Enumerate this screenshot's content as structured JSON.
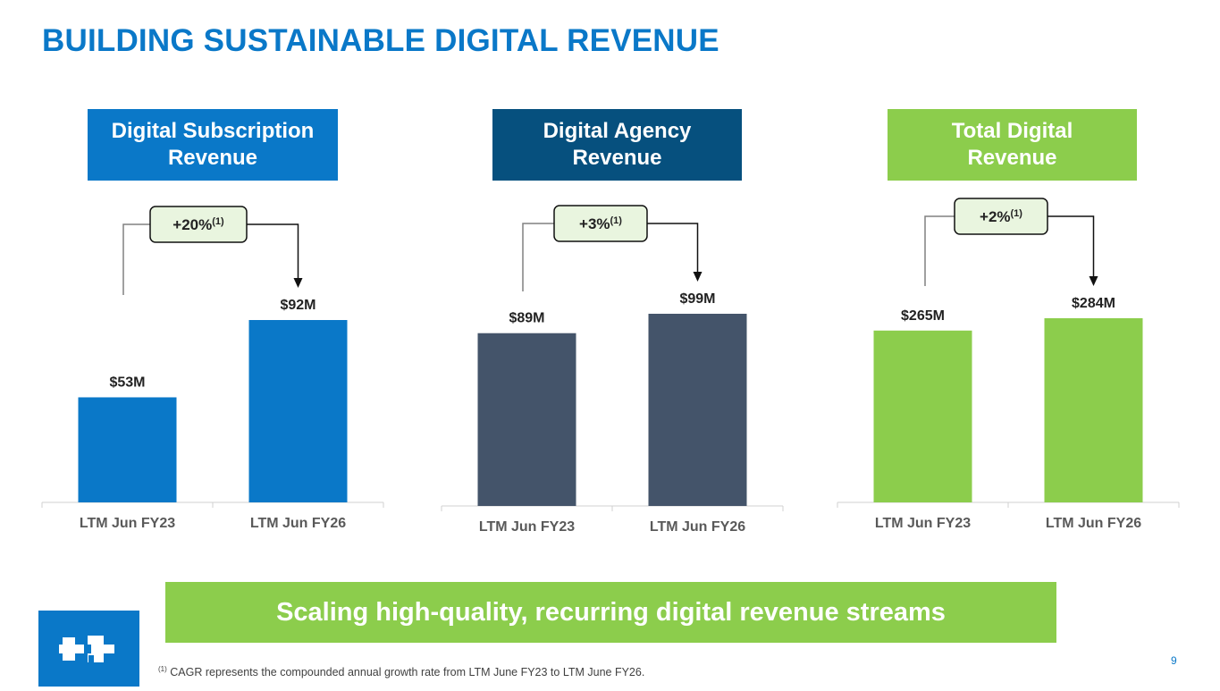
{
  "title": "BUILDING SUSTAINABLE DIGITAL REVENUE",
  "headers": {
    "subscription": {
      "line1": "Digital Subscription",
      "line2": "Revenue",
      "color": "#0a78c8"
    },
    "agency": {
      "line1": "Digital Agency",
      "line2": "Revenue",
      "color": "#06507e"
    },
    "total": {
      "line1": "Total Digital",
      "line2": "Revenue",
      "color": "#8ccd4c"
    }
  },
  "chart_data": [
    {
      "type": "bar",
      "categories": [
        "LTM Jun FY23",
        "LTM Jun FY26"
      ],
      "values": [
        53,
        92
      ],
      "data_labels": [
        "$53M",
        "$92M"
      ],
      "growth_label": "+20%",
      "growth_footnote": "(1)",
      "bar_color": "#0a78c8"
    },
    {
      "type": "bar",
      "categories": [
        "LTM Jun FY23",
        "LTM Jun FY26"
      ],
      "values": [
        89,
        99
      ],
      "data_labels": [
        "$89M",
        "$99M"
      ],
      "growth_label": "+3%",
      "growth_footnote": "(1)",
      "bar_color": "#44546a"
    },
    {
      "type": "bar",
      "categories": [
        "LTM Jun FY23",
        "LTM Jun FY26"
      ],
      "values": [
        265,
        284
      ],
      "data_labels": [
        "$265M",
        "$284M"
      ],
      "growth_label": "+2%",
      "growth_footnote": "(1)",
      "bar_color": "#8ccd4c"
    }
  ],
  "banner": "Scaling high-quality, recurring digital revenue streams",
  "footnote": {
    "marker": "(1)",
    "text": " CAGR represents the compounded annual growth rate from LTM June FY23 to LTM June FY26."
  },
  "page_number": "9",
  "colors": {
    "title": "#0a78c8",
    "callout_bg": "#e9f5df"
  }
}
